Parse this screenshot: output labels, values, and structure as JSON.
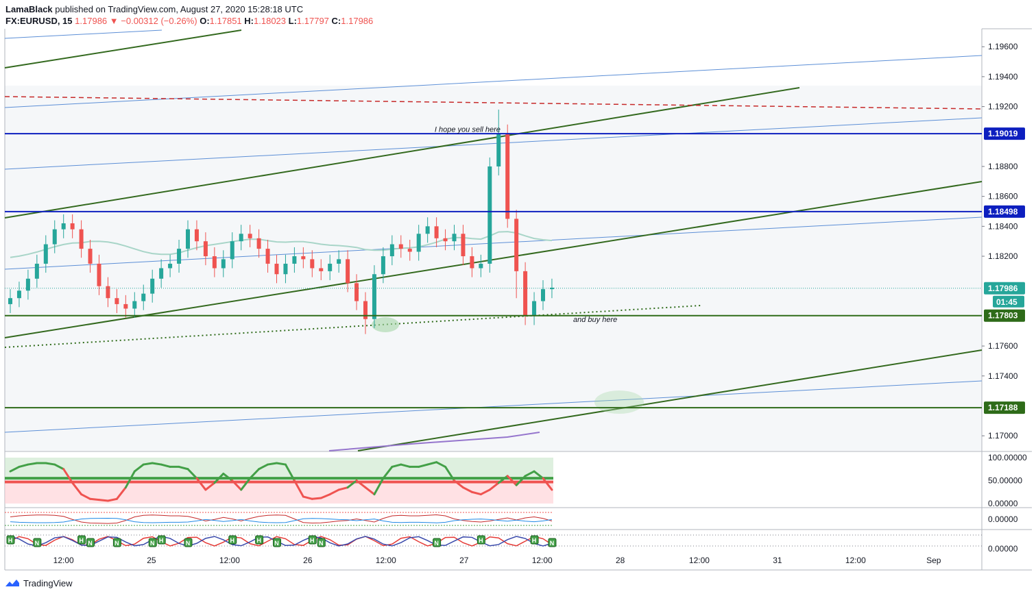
{
  "header": {
    "author": "LamaBlack",
    "published_text": "published on TradingView.com, August 27, 2020 15:28:18 UTC",
    "symbol": "FX:EURUSD, 15",
    "last": "1.17986",
    "change": "−0.00312 (−0.26%)",
    "o_label": "O:",
    "o": "1.17851",
    "h_label": "H:",
    "h": "1.18023",
    "l_label": "L:",
    "l": "1.17797",
    "c_label": "C:",
    "c": "1.17986"
  },
  "footer": {
    "brand": "TradingView"
  },
  "colors": {
    "green_line": "#33691e",
    "blue_line": "#5b8ed6",
    "level_blue": "#0d1fbf",
    "level_green": "#2e6b19",
    "dashed_red": "#c62828",
    "up_candle": "#26a69a",
    "down_candle": "#ef5350",
    "price_tag": "#26a69a",
    "ma": "#a8d5c8"
  },
  "chart_data": {
    "type": "candlestick",
    "symbol": "FX:EURUSD",
    "interval": "15",
    "y_range": [
      1.169,
      1.1972
    ],
    "y_ticks": [
      {
        "v": 1.196,
        "label": "1.19600"
      },
      {
        "v": 1.194,
        "label": "1.19400"
      },
      {
        "v": 1.192,
        "label": "1.19200"
      },
      {
        "v": 1.188,
        "label": "1.18800"
      },
      {
        "v": 1.186,
        "label": "1.18600"
      },
      {
        "v": 1.184,
        "label": "1.18400"
      },
      {
        "v": 1.182,
        "label": "1.18200"
      },
      {
        "v": 1.176,
        "label": "1.17600"
      },
      {
        "v": 1.174,
        "label": "1.17400"
      },
      {
        "v": 1.17,
        "label": "1.17000"
      }
    ],
    "x_range": [
      0,
      62
    ],
    "x_ticks": [
      {
        "t": 6,
        "label": "12:00"
      },
      {
        "t": 15.9,
        "label": "25"
      },
      {
        "t": 24.7,
        "label": "12:00"
      },
      {
        "t": 33.5,
        "label": "26"
      },
      {
        "t": 42.3,
        "label": "12:00"
      },
      {
        "t": 51.1,
        "label": "27"
      },
      {
        "t": 59.9,
        "label": "12:00"
      },
      {
        "t": 68.7,
        "label": "28"
      },
      {
        "t": 77.6,
        "label": "12:00"
      },
      {
        "t": 86.4,
        "label": "31"
      },
      {
        "t": 95.2,
        "label": "12:00"
      },
      {
        "t": 104,
        "label": "Sep"
      }
    ],
    "price_levels": [
      {
        "price": 1.19019,
        "label": "1.19019",
        "color": "#0d1fbf",
        "style": "solid"
      },
      {
        "price": 1.18498,
        "label": "1.18498",
        "color": "#0d1fbf",
        "style": "solid"
      },
      {
        "price": 1.17803,
        "label": "1.17803",
        "color": "#2e6b19",
        "style": "solid"
      },
      {
        "price": 1.17188,
        "label": "1.17188",
        "color": "#2e6b19",
        "style": "solid"
      }
    ],
    "last_price": {
      "price": 1.17986,
      "label": "1.17986",
      "countdown": "01:45"
    },
    "annotations": [
      {
        "text": "I hope you sell here",
        "t": 51.5,
        "price": 1.1903
      },
      {
        "text": "and buy here",
        "t": 63.4,
        "price": 1.1776
      }
    ],
    "closes": [
      1.1792,
      1.1797,
      1.1805,
      1.1815,
      1.1828,
      1.1838,
      1.1842,
      1.1838,
      1.1825,
      1.1815,
      1.18,
      1.1792,
      1.1788,
      1.1785,
      1.179,
      1.1795,
      1.1805,
      1.1812,
      1.1815,
      1.1825,
      1.1838,
      1.183,
      1.182,
      1.1812,
      1.1818,
      1.183,
      1.1835,
      1.1832,
      1.1825,
      1.1815,
      1.1808,
      1.1815,
      1.182,
      1.1818,
      1.1812,
      1.181,
      1.1815,
      1.1818,
      1.1802,
      1.179,
      1.1778,
      1.1808,
      1.182,
      1.1828,
      1.1825,
      1.1823,
      1.1835,
      1.184,
      1.1832,
      1.183,
      1.1835,
      1.182,
      1.1812,
      1.1815,
      1.188,
      1.1902,
      1.1845,
      1.181,
      1.178,
      1.179,
      1.1798,
      1.1799
    ]
  },
  "indicators": {
    "rsi_axis": [
      {
        "v": 100,
        "label": "100.00000"
      },
      {
        "v": 50,
        "label": "50.00000"
      },
      {
        "v": 0,
        "label": "0.00000"
      }
    ],
    "osc2_axis": [
      {
        "label": "0.00000"
      }
    ],
    "osc3_axis": [
      {
        "label": "0.00000"
      }
    ],
    "rsi_values": [
      70,
      80,
      85,
      88,
      88,
      85,
      75,
      45,
      20,
      10,
      8,
      6,
      10,
      35,
      70,
      85,
      88,
      85,
      80,
      80,
      75,
      55,
      30,
      45,
      65,
      50,
      30,
      55,
      75,
      85,
      88,
      85,
      50,
      15,
      10,
      12,
      20,
      30,
      35,
      50,
      35,
      20,
      55,
      80,
      85,
      80,
      80,
      85,
      90,
      80,
      50,
      35,
      25,
      20,
      30,
      45,
      60,
      40,
      60,
      70,
      55,
      30
    ],
    "signals": [
      {
        "t": 0,
        "k": "H"
      },
      {
        "t": 3,
        "k": "N"
      },
      {
        "t": 8,
        "k": "H"
      },
      {
        "t": 9,
        "k": "N"
      },
      {
        "t": 12,
        "k": "N"
      },
      {
        "t": 16,
        "k": "N"
      },
      {
        "t": 17,
        "k": "H"
      },
      {
        "t": 20,
        "k": "N"
      },
      {
        "t": 25,
        "k": "H"
      },
      {
        "t": 28,
        "k": "H"
      },
      {
        "t": 30,
        "k": "N"
      },
      {
        "t": 34,
        "k": "H"
      },
      {
        "t": 35,
        "k": "N"
      },
      {
        "t": 48,
        "k": "N"
      },
      {
        "t": 53,
        "k": "H"
      },
      {
        "t": 59,
        "k": "H"
      },
      {
        "t": 61,
        "k": "N"
      }
    ]
  }
}
